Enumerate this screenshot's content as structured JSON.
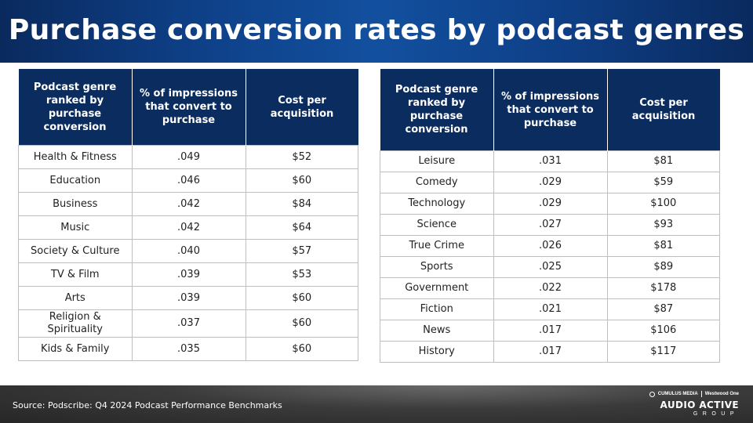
{
  "title": "Purchase conversion rates by podcast genres",
  "table_headers": {
    "genre": "Podcast genre ranked by purchase conversion",
    "conversion": "% of impressions that convert to purchase",
    "cost": "Cost per acquisition"
  },
  "left_table": {
    "rows": [
      {
        "genre": "Health & Fitness",
        "conversion": ".049",
        "cost": "$52"
      },
      {
        "genre": "Education",
        "conversion": ".046",
        "cost": "$60"
      },
      {
        "genre": "Business",
        "conversion": ".042",
        "cost": "$84"
      },
      {
        "genre": "Music",
        "conversion": ".042",
        "cost": "$64"
      },
      {
        "genre": "Society & Culture",
        "conversion": ".040",
        "cost": "$57"
      },
      {
        "genre": "TV & Film",
        "conversion": ".039",
        "cost": "$53"
      },
      {
        "genre": "Arts",
        "conversion": ".039",
        "cost": "$60"
      },
      {
        "genre": "Religion & Spirituality",
        "conversion": ".037",
        "cost": "$60"
      },
      {
        "genre": "Kids & Family",
        "conversion": ".035",
        "cost": "$60"
      }
    ]
  },
  "right_table": {
    "rows": [
      {
        "genre": "Leisure",
        "conversion": ".031",
        "cost": "$81"
      },
      {
        "genre": "Comedy",
        "conversion": ".029",
        "cost": "$59"
      },
      {
        "genre": "Technology",
        "conversion": ".029",
        "cost": "$100"
      },
      {
        "genre": "Science",
        "conversion": ".027",
        "cost": "$93"
      },
      {
        "genre": "True Crime",
        "conversion": ".026",
        "cost": "$81"
      },
      {
        "genre": "Sports",
        "conversion": ".025",
        "cost": "$89"
      },
      {
        "genre": "Government",
        "conversion": ".022",
        "cost": "$178"
      },
      {
        "genre": "Fiction",
        "conversion": ".021",
        "cost": "$87"
      },
      {
        "genre": "News",
        "conversion": ".017",
        "cost": "$106"
      },
      {
        "genre": "History",
        "conversion": ".017",
        "cost": "$117"
      }
    ]
  },
  "footer": {
    "source": "Source: Podscribe: Q4 2024 Podcast Performance Benchmarks",
    "logo_top_left": "CUMULUS MEDIA",
    "logo_top_right": "Westwood One",
    "logo_main": "AUDIO ACTIVE",
    "logo_sub": "GROUP"
  },
  "colors": {
    "header_bg": "#0e3f86",
    "table_header_bg": "#0b2c5e",
    "footer_bg": "#3b3b3b"
  }
}
